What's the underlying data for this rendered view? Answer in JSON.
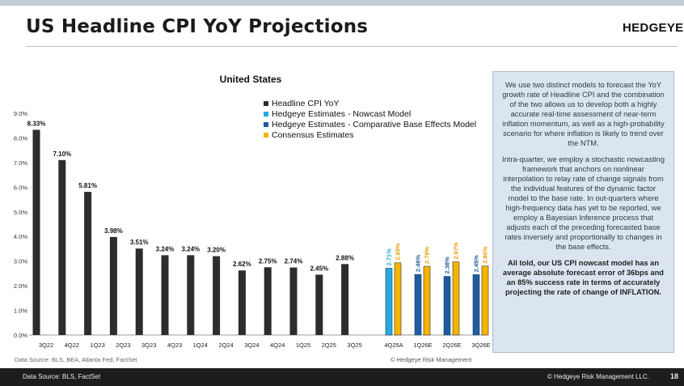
{
  "page": {
    "title": "US Headline CPI YoY Projections",
    "brand": "HEDGEYE",
    "source_left": "Data Source: BLS, BEA, Atlanta Fed, FactSet",
    "source_right": "© Hedgeye Risk Management",
    "footer_left": "Data Source: BLS, FactSet",
    "footer_right": "© Hedgeye Risk Management LLC.",
    "page_number": "18"
  },
  "note": {
    "p1": "We use two distinct models to forecast the YoY growth rate of Headline CPI and the combination of the two allows us to develop both a highly accurate real-time assessment of near-term inflation momentum, as well as a high-probability scenario for where inflation is likely to trend over the NTM.",
    "p2": "Intra-quarter, we employ a stochastic nowcasting framework that anchors on nonlinear interpolation to relay rate of change signals from the individual features of the dynamic factor model to the base rate. In out-quarters where high-frequency data has yet to be reported, we employ a Bayesian Inference process that adjusts each of the preceding forecasted base rates inversely and proportionally to changes in the base effects.",
    "p3": "All told, our US CPI nowcast model has an average absolute forecast error of 36bps and an 85% success rate in terms of accurately projecting the rate of change of INFLATION."
  },
  "chart_data": {
    "type": "bar",
    "title": "United States",
    "ylim": [
      0,
      9
    ],
    "yticks": [
      "0.0%",
      "1.0%",
      "2.0%",
      "3.0%",
      "4.0%",
      "5.0%",
      "6.0%",
      "7.0%",
      "8.0%",
      "9.0%"
    ],
    "grid": false,
    "legend_position": "top-center",
    "colors": {
      "headline": "#2d2d2d",
      "nowcast": "#29a8df",
      "base_effects": "#1f5b9e",
      "consensus": "#f5b400"
    },
    "legend": [
      {
        "label": "Headline CPI YoY",
        "color": "#2d2d2d"
      },
      {
        "label": "Hedgeye Estimates - Nowcast Model",
        "color": "#29a8df"
      },
      {
        "label": "Hedgeye Estimates - Comparative Base Effects Model",
        "color": "#1f5b9e"
      },
      {
        "label": "Consensus Estimates",
        "color": "#f5b400"
      }
    ],
    "historical": {
      "series_name": "Headline CPI YoY",
      "categories": [
        "3Q22",
        "4Q22",
        "1Q23",
        "2Q23",
        "3Q23",
        "4Q23",
        "1Q24",
        "2Q24",
        "3Q24",
        "4Q24",
        "1Q25",
        "2Q25",
        "3Q25"
      ],
      "values": [
        8.33,
        7.1,
        5.81,
        3.98,
        3.51,
        3.24,
        3.24,
        3.2,
        2.62,
        2.75,
        2.74,
        2.45,
        2.88
      ],
      "labels": [
        "8.33%",
        "7.10%",
        "5.81%",
        "3.98%",
        "3.51%",
        "3.24%",
        "3.24%",
        "3.20%",
        "2.62%",
        "2.75%",
        "2.74%",
        "2.45%",
        "2.88%"
      ]
    },
    "projections": [
      {
        "category": "4Q25A",
        "hedgeye": 2.71,
        "hedgeye_label": "2.71%",
        "hedgeye_model": "nowcast",
        "consensus": 2.93,
        "consensus_label": "2.93%"
      },
      {
        "category": "1Q26E",
        "hedgeye": 2.46,
        "hedgeye_label": "2.46%",
        "hedgeye_model": "base_effects",
        "consensus": 2.79,
        "consensus_label": "2.79%"
      },
      {
        "category": "2Q26E",
        "hedgeye": 2.38,
        "hedgeye_label": "2.38%",
        "hedgeye_model": "base_effects",
        "consensus": 2.97,
        "consensus_label": "2.97%"
      },
      {
        "category": "3Q26E",
        "hedgeye": 2.45,
        "hedgeye_label": "2.45%",
        "hedgeye_model": "base_effects",
        "consensus": 2.8,
        "consensus_label": "2.80%"
      }
    ]
  }
}
